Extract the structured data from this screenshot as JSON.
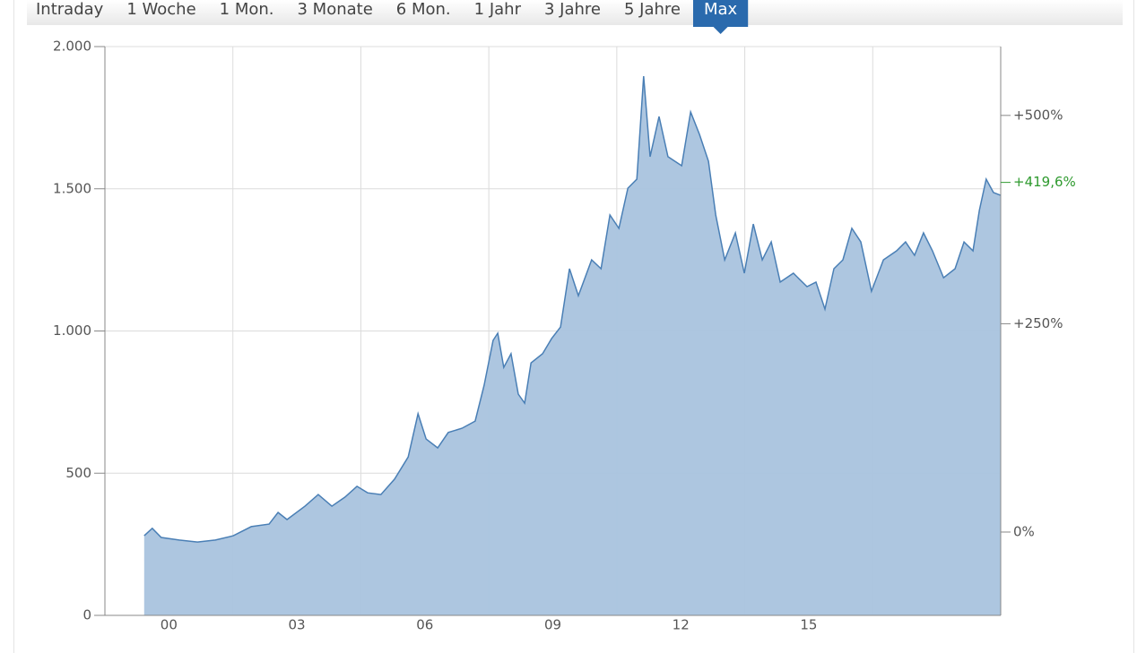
{
  "chart_data": {
    "type": "area",
    "tabs": [
      "Intraday",
      "1 Woche",
      "1 Mon.",
      "3 Monate",
      "6 Mon.",
      "1 Jahr",
      "3 Jahre",
      "5 Jahre",
      "Max"
    ],
    "selected_tab": 8,
    "x": [
      1999.92,
      2000.11,
      2000.32,
      2000.74,
      2001.17,
      2001.59,
      2002.01,
      2002.43,
      2002.85,
      2003.06,
      2003.27,
      2003.69,
      2004.0,
      2004.32,
      2004.63,
      2004.91,
      2005.16,
      2005.47,
      2005.79,
      2006.11,
      2006.34,
      2006.53,
      2006.8,
      2007.05,
      2007.37,
      2007.68,
      2007.89,
      2008.1,
      2008.21,
      2008.35,
      2008.52,
      2008.69,
      2008.84,
      2008.99,
      2009.26,
      2009.47,
      2009.68,
      2009.89,
      2010.1,
      2010.41,
      2010.63,
      2010.84,
      2011.05,
      2011.26,
      2011.47,
      2011.63,
      2011.78,
      2011.99,
      2012.2,
      2012.52,
      2012.73,
      2012.94,
      2013.15,
      2013.32,
      2013.53,
      2013.78,
      2013.99,
      2014.2,
      2014.41,
      2014.62,
      2014.83,
      2015.14,
      2015.46,
      2015.67,
      2015.88,
      2016.09,
      2016.3,
      2016.51,
      2016.72,
      2016.97,
      2017.25,
      2017.56,
      2017.77,
      2017.98,
      2018.19,
      2018.4,
      2018.66,
      2018.93,
      2019.14,
      2019.35,
      2019.5,
      2019.66,
      2019.83,
      2020.0
    ],
    "values": [
      280,
      306,
      274,
      265,
      258,
      265,
      280,
      312,
      321,
      362,
      337,
      384,
      425,
      384,
      416,
      454,
      431,
      425,
      479,
      557,
      709,
      620,
      589,
      643,
      658,
      683,
      809,
      967,
      992,
      872,
      920,
      778,
      746,
      888,
      920,
      973,
      1014,
      1219,
      1124,
      1250,
      1219,
      1408,
      1361,
      1502,
      1534,
      1896,
      1613,
      1754,
      1613,
      1581,
      1770,
      1691,
      1597,
      1408,
      1250,
      1345,
      1203,
      1376,
      1250,
      1313,
      1172,
      1203,
      1156,
      1172,
      1077,
      1219,
      1250,
      1361,
      1313,
      1140,
      1250,
      1282,
      1313,
      1266,
      1345,
      1282,
      1187,
      1219,
      1313,
      1282,
      1424,
      1534,
      1487,
      1477
    ],
    "color": "#4a7fb5",
    "fill_color": "#a9c3de",
    "xlim": [
      1999,
      2020
    ],
    "xticks": [
      {
        "value": 2000.5,
        "label": "00"
      },
      {
        "value": 2003.5,
        "label": "03"
      },
      {
        "value": 2006.5,
        "label": "06"
      },
      {
        "value": 2009.5,
        "label": "09"
      },
      {
        "value": 2012.5,
        "label": "12"
      },
      {
        "value": 2015.5,
        "label": "15"
      }
    ],
    "xgrid": [
      2002,
      2005,
      2008,
      2011,
      2014,
      2017
    ],
    "ylim": [
      0,
      2000
    ],
    "yticks": [
      0,
      500,
      {
        "value": 1000,
        "label": "1.000"
      },
      {
        "value": 1500,
        "label": "1.500"
      },
      {
        "value": 2000,
        "label": "2.000"
      }
    ],
    "y2lim": [
      -100,
      582.6
    ],
    "y2ticks": [
      {
        "value": 0,
        "label": "0%"
      },
      {
        "value": 250,
        "label": "+250%"
      },
      {
        "value": 500,
        "label": "+500%"
      }
    ],
    "annotation": {
      "value": 419.6,
      "label": "+419,6%",
      "color": "#2e9a2e"
    },
    "grid": true
  }
}
